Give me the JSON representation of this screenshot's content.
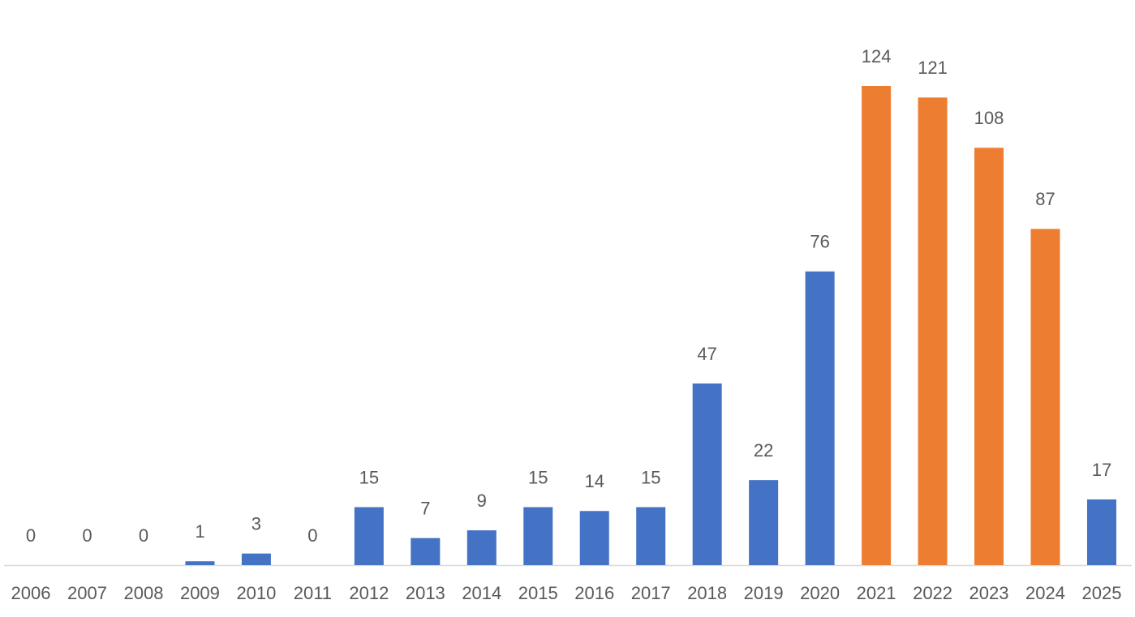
{
  "chart_data": {
    "type": "bar",
    "categories": [
      "2006",
      "2007",
      "2008",
      "2009",
      "2010",
      "2011",
      "2012",
      "2013",
      "2014",
      "2015",
      "2016",
      "2017",
      "2018",
      "2019",
      "2020",
      "2021",
      "2022",
      "2023",
      "2024",
      "2025"
    ],
    "values": [
      0,
      0,
      0,
      1,
      3,
      0,
      15,
      7,
      9,
      15,
      14,
      15,
      47,
      22,
      76,
      124,
      121,
      108,
      87,
      17
    ],
    "colors": [
      "#4472c4",
      "#4472c4",
      "#4472c4",
      "#4472c4",
      "#4472c4",
      "#4472c4",
      "#4472c4",
      "#4472c4",
      "#4472c4",
      "#4472c4",
      "#4472c4",
      "#4472c4",
      "#4472c4",
      "#4472c4",
      "#4472c4",
      "#ed7d31",
      "#ed7d31",
      "#ed7d31",
      "#ed7d31",
      "#4472c4"
    ]
  }
}
